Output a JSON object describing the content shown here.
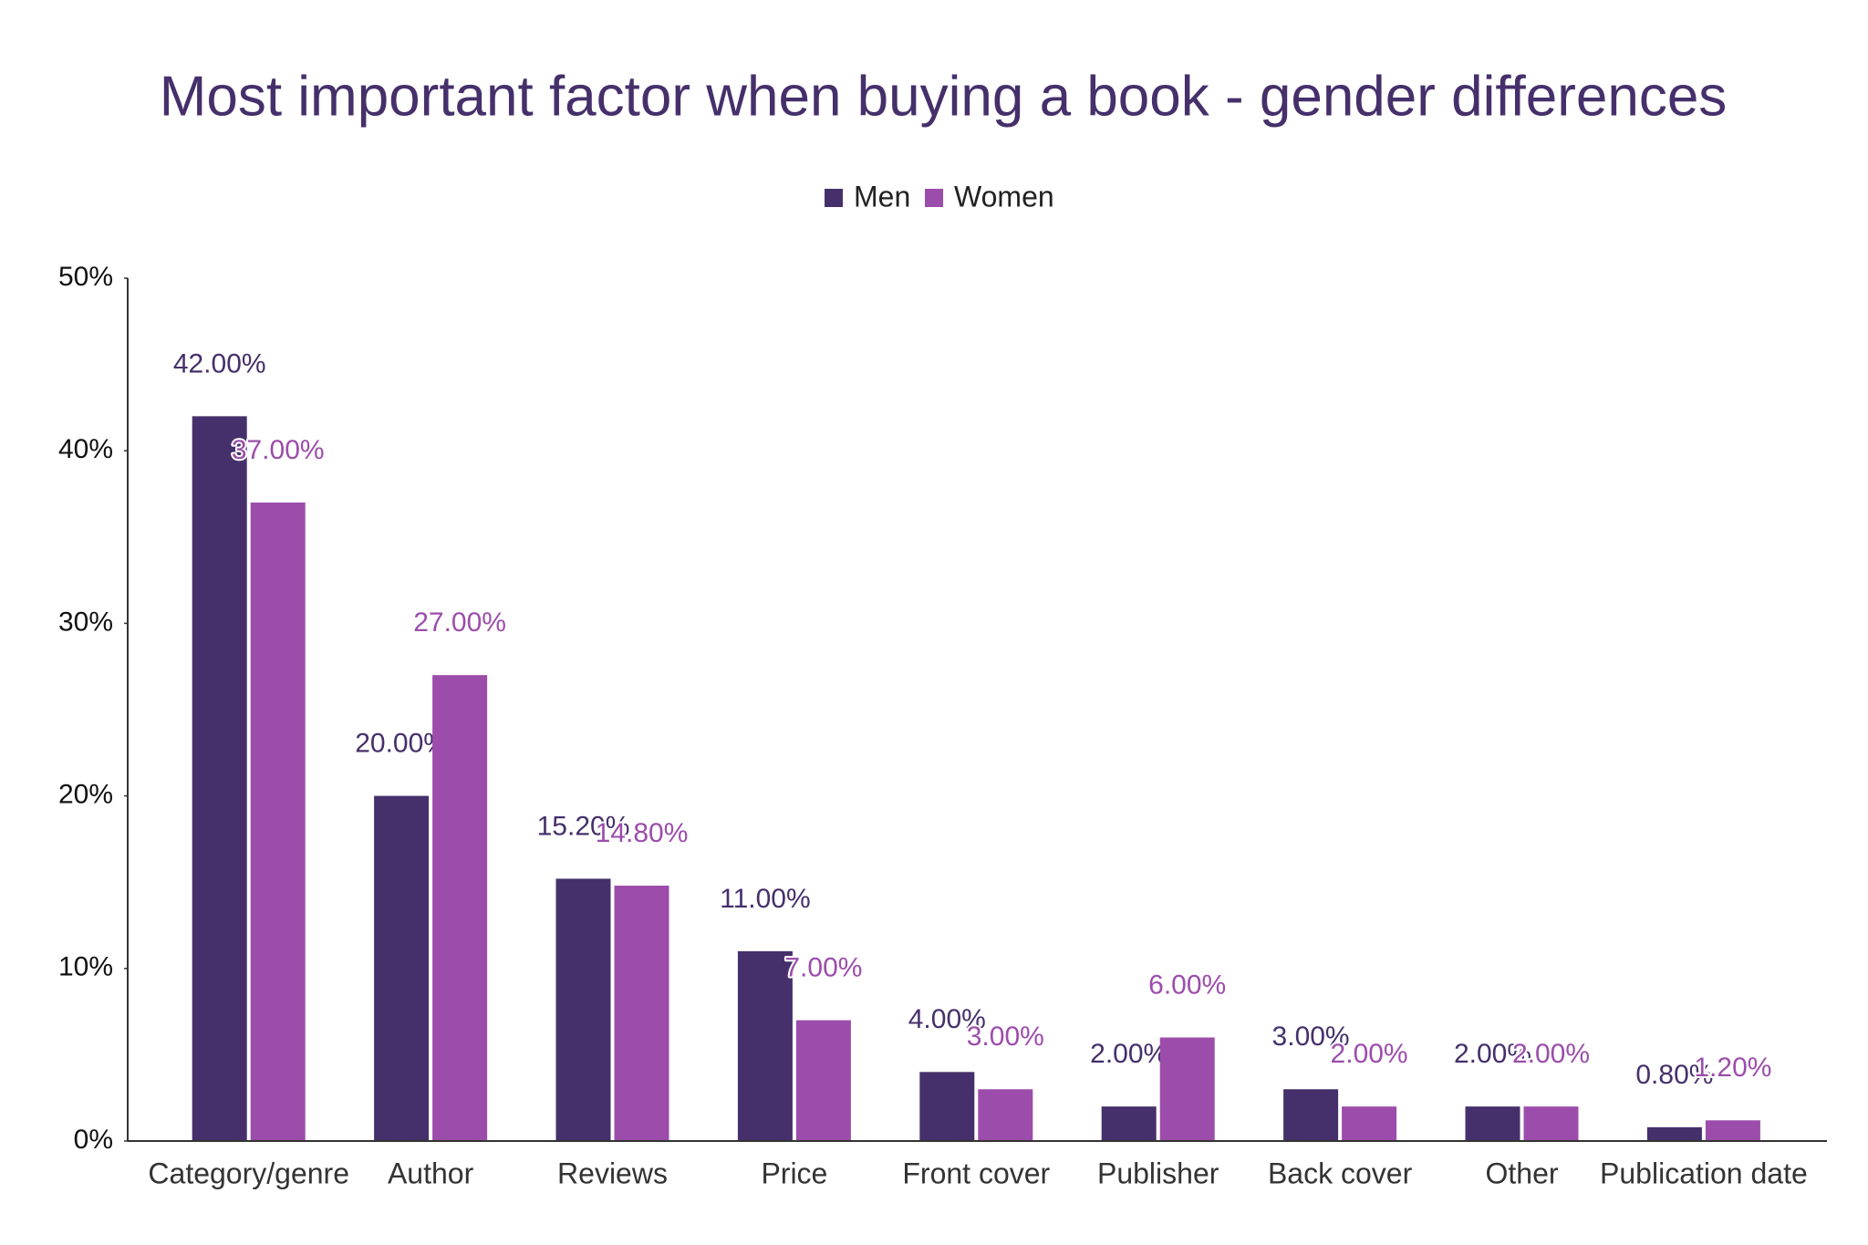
{
  "chart_data": {
    "type": "bar",
    "title": "Most important factor when buying a book - gender differences",
    "categories": [
      "Category/genre",
      "Author",
      "Reviews",
      "Price",
      "Front cover",
      "Publisher",
      "Back cover",
      "Other",
      "Publication date"
    ],
    "series": [
      {
        "name": "Men",
        "color": "#45306b",
        "values": [
          42,
          20,
          15.2,
          11,
          4,
          2,
          3,
          2,
          0.8
        ],
        "value_labels": [
          "42.00%",
          "20.00%",
          "15.20%",
          "11.00%",
          "4.00%",
          "2.00%",
          "3.00%",
          "2.00%",
          "0.80%"
        ]
      },
      {
        "name": "Women",
        "color": "#9c4dab",
        "values": [
          37,
          27,
          14.8,
          7,
          3,
          6,
          2,
          2,
          1.2
        ],
        "value_labels": [
          "37.00%",
          "27.00%",
          "14.80%",
          "7.00%",
          "3.00%",
          "6.00%",
          "2.00%",
          "2.00%",
          "1.20%"
        ]
      }
    ],
    "ylim": [
      0,
      50
    ],
    "yticks": [
      {
        "value": 0,
        "label": "0%"
      },
      {
        "value": 10,
        "label": "10%"
      },
      {
        "value": 20,
        "label": "20%"
      },
      {
        "value": 30,
        "label": "30%"
      },
      {
        "value": 40,
        "label": "40%"
      },
      {
        "value": 50,
        "label": "50%"
      }
    ],
    "legend": "top"
  }
}
